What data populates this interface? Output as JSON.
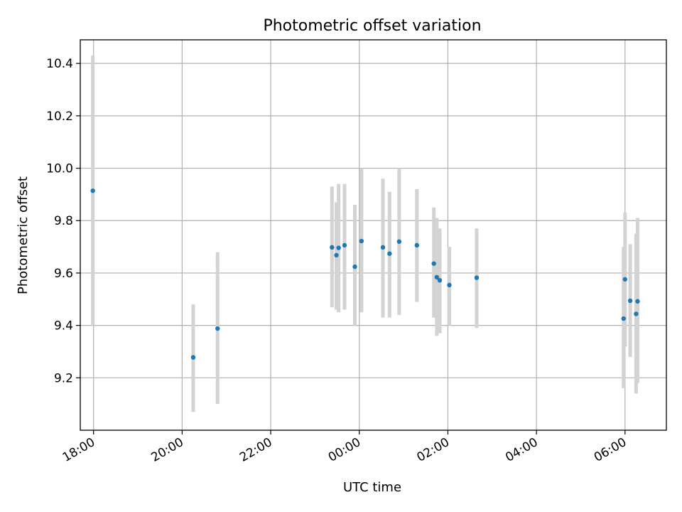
{
  "chart_data": {
    "type": "scatter",
    "title": "Photometric offset variation",
    "xlabel": "UTC time",
    "ylabel": "Photometric offset",
    "xlim": [
      "17:42",
      "06:56"
    ],
    "ylim": [
      9.0,
      10.49
    ],
    "x_ticks": [
      "18:00",
      "20:00",
      "22:00",
      "00:00",
      "02:00",
      "04:00",
      "06:00"
    ],
    "y_ticks": [
      "9.2",
      "9.4",
      "9.6",
      "9.8",
      "10.0",
      "10.2",
      "10.4"
    ],
    "grid": true,
    "marker_color": "#1f77b4",
    "errorbar_color": "#d3d3d3",
    "series": [
      {
        "points": [
          {
            "t": "17:59",
            "y": 9.914,
            "lo": 9.4,
            "hi": 10.43
          },
          {
            "t": "20:15",
            "y": 9.278,
            "lo": 9.07,
            "hi": 9.48
          },
          {
            "t": "20:48",
            "y": 9.388,
            "lo": 9.1,
            "hi": 9.68
          },
          {
            "t": "23:23",
            "y": 9.698,
            "lo": 9.47,
            "hi": 9.93
          },
          {
            "t": "23:29",
            "y": 9.668,
            "lo": 9.46,
            "hi": 9.87
          },
          {
            "t": "23:32",
            "y": 9.696,
            "lo": 9.45,
            "hi": 9.94
          },
          {
            "t": "23:40",
            "y": 9.706,
            "lo": 9.46,
            "hi": 9.94
          },
          {
            "t": "23:54",
            "y": 9.624,
            "lo": 9.4,
            "hi": 9.86
          },
          {
            "t": "00:03",
            "y": 9.722,
            "lo": 9.45,
            "hi": 10.0
          },
          {
            "t": "00:32",
            "y": 9.698,
            "lo": 9.43,
            "hi": 9.96
          },
          {
            "t": "00:41",
            "y": 9.674,
            "lo": 9.43,
            "hi": 9.91
          },
          {
            "t": "00:54",
            "y": 9.72,
            "lo": 9.44,
            "hi": 10.0
          },
          {
            "t": "01:18",
            "y": 9.706,
            "lo": 9.49,
            "hi": 9.92
          },
          {
            "t": "01:41",
            "y": 9.636,
            "lo": 9.43,
            "hi": 9.85
          },
          {
            "t": "01:45",
            "y": 9.584,
            "lo": 9.36,
            "hi": 9.81
          },
          {
            "t": "01:49",
            "y": 9.572,
            "lo": 9.37,
            "hi": 9.77
          },
          {
            "t": "02:02",
            "y": 9.554,
            "lo": 9.4,
            "hi": 9.7
          },
          {
            "t": "02:39",
            "y": 9.582,
            "lo": 9.39,
            "hi": 9.77
          },
          {
            "t": "05:58",
            "y": 9.426,
            "lo": 9.16,
            "hi": 9.7
          },
          {
            "t": "06:00",
            "y": 9.576,
            "lo": 9.32,
            "hi": 9.83
          },
          {
            "t": "06:07",
            "y": 9.494,
            "lo": 9.28,
            "hi": 9.71
          },
          {
            "t": "06:15",
            "y": 9.444,
            "lo": 9.14,
            "hi": 9.75
          },
          {
            "t": "06:17",
            "y": 9.492,
            "lo": 9.18,
            "hi": 9.81
          }
        ]
      }
    ]
  }
}
